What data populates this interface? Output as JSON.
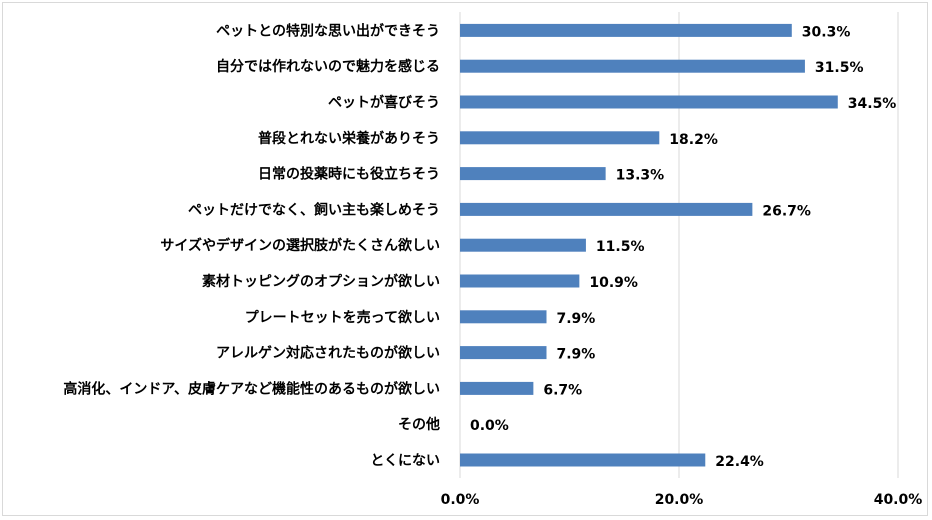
{
  "chart_data": {
    "type": "bar",
    "orientation": "horizontal",
    "title": "",
    "xlabel": "",
    "ylabel": "",
    "categories": [
      "ペットとの特別な思い出ができそう",
      "自分では作れないので魅力を感じる",
      "ペットが喜びそう",
      "普段とれない栄養がありそう",
      "日常の投薬時にも役立ちそう",
      "ペットだけでなく、飼い主も楽しめそう",
      "サイズやデザインの選択肢がたくさん欲しい",
      "素材トッピングのオプションが欲しい",
      "プレートセットを売って欲しい",
      "アレルゲン対応されたものが欲しい",
      "高消化、インドア、皮膚ケアなど機能性のあるものが欲しい",
      "その他",
      "とくにない"
    ],
    "values": [
      30.3,
      31.5,
      34.5,
      18.2,
      13.3,
      26.7,
      11.5,
      10.9,
      7.9,
      7.9,
      6.7,
      0.0,
      22.4
    ],
    "value_labels": [
      "30.3%",
      "31.5%",
      "34.5%",
      "18.2%",
      "13.3%",
      "26.7%",
      "11.5%",
      "10.9%",
      "7.9%",
      "7.9%",
      "6.7%",
      "0.0%",
      "22.4%"
    ],
    "xlim": [
      0,
      40
    ],
    "x_ticks": [
      0,
      20,
      40
    ],
    "x_tick_labels": [
      "0.0%",
      "20.0%",
      "40.0%"
    ],
    "grid": true,
    "bar_color": "#4f81bd",
    "grid_color": "#d9d9d9"
  }
}
